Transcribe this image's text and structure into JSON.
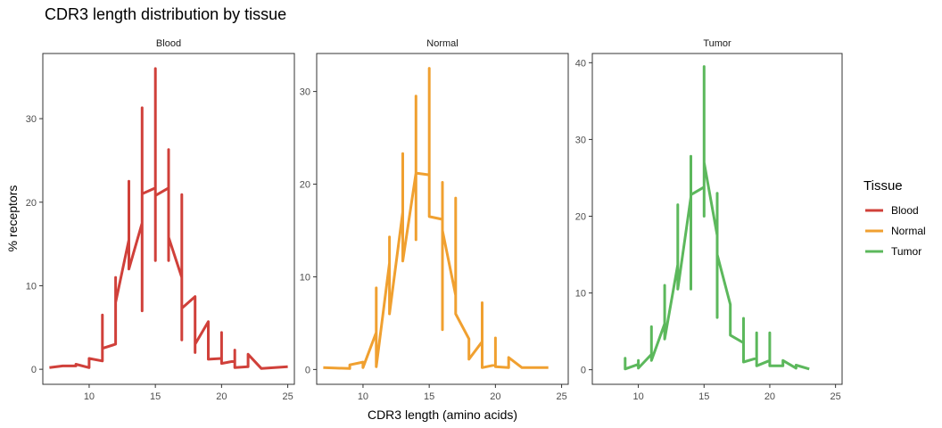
{
  "chart_data": {
    "type": "line",
    "title": "CDR3 length distribution by tissue",
    "xlabel": "CDR3 length (amino acids)",
    "ylabel": "% receptors",
    "legend_title": "Tissue",
    "legend_placement": "right",
    "grid": false,
    "xlim": [
      6.5,
      25.5
    ],
    "x_ticks": [
      10,
      15,
      20,
      25
    ],
    "facets": [
      {
        "name": "Blood",
        "color": "#d0403a",
        "ylim": [
          -1.8,
          37.8
        ],
        "y_ticks": [
          0,
          10,
          20,
          30
        ],
        "points": [
          {
            "x": 7,
            "y": 0.2
          },
          {
            "x": 8,
            "y": 0.4
          },
          {
            "x": 9,
            "y": 0.4
          },
          {
            "x": 9,
            "y": 0.6
          },
          {
            "x": 10,
            "y": 0.2
          },
          {
            "x": 10,
            "y": 1.3
          },
          {
            "x": 11,
            "y": 1.0
          },
          {
            "x": 11,
            "y": 6.5
          },
          {
            "x": 11,
            "y": 2.5
          },
          {
            "x": 12,
            "y": 3.0
          },
          {
            "x": 12,
            "y": 11.0
          },
          {
            "x": 12,
            "y": 8.0
          },
          {
            "x": 13,
            "y": 15.5
          },
          {
            "x": 13,
            "y": 22.5
          },
          {
            "x": 13,
            "y": 12.0
          },
          {
            "x": 14,
            "y": 17.5
          },
          {
            "x": 14,
            "y": 31.3
          },
          {
            "x": 14,
            "y": 7.0
          },
          {
            "x": 14,
            "y": 21.0
          },
          {
            "x": 15,
            "y": 21.7
          },
          {
            "x": 15,
            "y": 36.0
          },
          {
            "x": 15,
            "y": 13.0
          },
          {
            "x": 15,
            "y": 20.8
          },
          {
            "x": 16,
            "y": 21.7
          },
          {
            "x": 16,
            "y": 26.3
          },
          {
            "x": 16,
            "y": 13.0
          },
          {
            "x": 16,
            "y": 15.8
          },
          {
            "x": 17,
            "y": 11.0
          },
          {
            "x": 17,
            "y": 20.9
          },
          {
            "x": 17,
            "y": 3.5
          },
          {
            "x": 17,
            "y": 7.3
          },
          {
            "x": 18,
            "y": 8.7
          },
          {
            "x": 18,
            "y": 2.0
          },
          {
            "x": 18,
            "y": 3.0
          },
          {
            "x": 19,
            "y": 5.7
          },
          {
            "x": 19,
            "y": 1.2
          },
          {
            "x": 20,
            "y": 1.3
          },
          {
            "x": 20,
            "y": 4.4
          },
          {
            "x": 20,
            "y": 0.7
          },
          {
            "x": 21,
            "y": 1.0
          },
          {
            "x": 21,
            "y": 2.3
          },
          {
            "x": 21,
            "y": 0.2
          },
          {
            "x": 22,
            "y": 0.3
          },
          {
            "x": 22,
            "y": 1.8
          },
          {
            "x": 23,
            "y": 0.1
          },
          {
            "x": 25,
            "y": 0.3
          }
        ]
      },
      {
        "name": "Normal",
        "color": "#f0a030",
        "ylim": [
          -1.6,
          34.1
        ],
        "y_ticks": [
          0,
          10,
          20,
          30
        ],
        "points": [
          {
            "x": 7,
            "y": 0.2
          },
          {
            "x": 9,
            "y": 0.1
          },
          {
            "x": 9,
            "y": 0.5
          },
          {
            "x": 10,
            "y": 0.8
          },
          {
            "x": 10,
            "y": 0.2
          },
          {
            "x": 11,
            "y": 4.0
          },
          {
            "x": 11,
            "y": 8.8
          },
          {
            "x": 11,
            "y": 0.3
          },
          {
            "x": 12,
            "y": 11.5
          },
          {
            "x": 12,
            "y": 14.3
          },
          {
            "x": 12,
            "y": 6.0
          },
          {
            "x": 13,
            "y": 17.0
          },
          {
            "x": 13,
            "y": 23.3
          },
          {
            "x": 13,
            "y": 11.7
          },
          {
            "x": 14,
            "y": 21.2
          },
          {
            "x": 14,
            "y": 29.5
          },
          {
            "x": 14,
            "y": 14.0
          },
          {
            "x": 14,
            "y": 21.2
          },
          {
            "x": 15,
            "y": 21.0
          },
          {
            "x": 15,
            "y": 32.5
          },
          {
            "x": 15,
            "y": 16.5
          },
          {
            "x": 16,
            "y": 16.2
          },
          {
            "x": 16,
            "y": 20.2
          },
          {
            "x": 16,
            "y": 4.3
          },
          {
            "x": 16,
            "y": 15.0
          },
          {
            "x": 17,
            "y": 8.0
          },
          {
            "x": 17,
            "y": 18.5
          },
          {
            "x": 17,
            "y": 6.0
          },
          {
            "x": 18,
            "y": 3.3
          },
          {
            "x": 18,
            "y": 1.1
          },
          {
            "x": 19,
            "y": 3.0
          },
          {
            "x": 19,
            "y": 7.2
          },
          {
            "x": 19,
            "y": 0.2
          },
          {
            "x": 20,
            "y": 0.5
          },
          {
            "x": 20,
            "y": 3.4
          },
          {
            "x": 20,
            "y": 0.3
          },
          {
            "x": 21,
            "y": 0.2
          },
          {
            "x": 21,
            "y": 1.3
          },
          {
            "x": 22,
            "y": 0.2
          },
          {
            "x": 24,
            "y": 0.2
          }
        ]
      },
      {
        "name": "Tumor",
        "color": "#5cb85c",
        "ylim": [
          -1.9,
          41.2
        ],
        "y_ticks": [
          0,
          10,
          20,
          30,
          40
        ],
        "points": [
          {
            "x": 9,
            "y": 0.1
          },
          {
            "x": 9,
            "y": 1.5
          },
          {
            "x": 9,
            "y": 0.1
          },
          {
            "x": 10,
            "y": 0.7
          },
          {
            "x": 10,
            "y": 1.2
          },
          {
            "x": 10,
            "y": 0.2
          },
          {
            "x": 11,
            "y": 2.0
          },
          {
            "x": 11,
            "y": 5.6
          },
          {
            "x": 11,
            "y": 1.2
          },
          {
            "x": 12,
            "y": 6.0
          },
          {
            "x": 12,
            "y": 11.0
          },
          {
            "x": 12,
            "y": 4.0
          },
          {
            "x": 13,
            "y": 13.7
          },
          {
            "x": 13,
            "y": 21.5
          },
          {
            "x": 13,
            "y": 10.5
          },
          {
            "x": 14,
            "y": 22.5
          },
          {
            "x": 14,
            "y": 27.8
          },
          {
            "x": 14,
            "y": 10.5
          },
          {
            "x": 14,
            "y": 22.8
          },
          {
            "x": 15,
            "y": 23.8
          },
          {
            "x": 15,
            "y": 39.5
          },
          {
            "x": 15,
            "y": 20.0
          },
          {
            "x": 15,
            "y": 27.0
          },
          {
            "x": 16,
            "y": 17.5
          },
          {
            "x": 16,
            "y": 23.0
          },
          {
            "x": 16,
            "y": 6.8
          },
          {
            "x": 16,
            "y": 15.0
          },
          {
            "x": 17,
            "y": 8.5
          },
          {
            "x": 17,
            "y": 4.5
          },
          {
            "x": 18,
            "y": 3.5
          },
          {
            "x": 18,
            "y": 6.7
          },
          {
            "x": 18,
            "y": 1.0
          },
          {
            "x": 19,
            "y": 1.5
          },
          {
            "x": 19,
            "y": 4.8
          },
          {
            "x": 19,
            "y": 0.5
          },
          {
            "x": 20,
            "y": 1.2
          },
          {
            "x": 20,
            "y": 4.8
          },
          {
            "x": 20,
            "y": 0.5
          },
          {
            "x": 21,
            "y": 0.5
          },
          {
            "x": 21,
            "y": 1.2
          },
          {
            "x": 22,
            "y": 0.2
          },
          {
            "x": 22,
            "y": 0.6
          },
          {
            "x": 23,
            "y": 0.1
          }
        ]
      }
    ]
  }
}
